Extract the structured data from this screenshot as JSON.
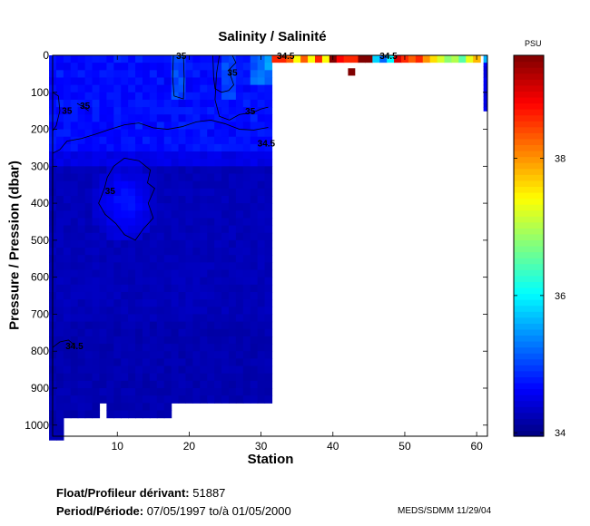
{
  "chart_data": {
    "type": "heatmap",
    "title": "Salinity / Salinité",
    "xlabel": "Station",
    "ylabel": "Pressure / Pression (dbar)",
    "xlim": [
      1,
      61.5
    ],
    "ylim": [
      1030,
      0
    ],
    "x_ticks": [
      10,
      20,
      30,
      40,
      50,
      60
    ],
    "y_ticks": [
      0,
      100,
      200,
      300,
      400,
      500,
      600,
      700,
      800,
      900,
      1000
    ],
    "colorbar": {
      "label": "PSU",
      "range": [
        33.95,
        39.5
      ],
      "ticks": [
        34,
        36,
        38
      ],
      "colormap": "jet"
    },
    "contour_labels": [
      {
        "text": "35",
        "x": 18.2,
        "y": 0
      },
      {
        "text": "35",
        "x": 25.3,
        "y": 45
      },
      {
        "text": "35",
        "x": 2.3,
        "y": 148
      },
      {
        "text": "35",
        "x": 4.8,
        "y": 135
      },
      {
        "text": "35",
        "x": 27.8,
        "y": 150
      },
      {
        "text": "34.5",
        "x": 29.5,
        "y": 237
      },
      {
        "text": "35",
        "x": 8.3,
        "y": 365
      },
      {
        "text": "34.5",
        "x": 2.8,
        "y": 785
      },
      {
        "text": "34.5",
        "x": 32.2,
        "y": 0
      },
      {
        "text": "34.5",
        "x": 46.5,
        "y": 0
      }
    ],
    "regions": {
      "deep_profiles": "stations 1-31, salinity ~34.1-34.9 PSU, 0-980 dbar",
      "high_salinity_core": "stations 7-15, 280-500 dbar, >35 PSU",
      "surface_stations": "stations 31-61, 0-20 dbar only, ~36-39.5 PSU",
      "station_61": "0-150 dbar, ~34.3-35.6 PSU"
    }
  },
  "footer": {
    "float_label": "Float/Profileur dérivant:",
    "float_id": "51887",
    "period_label": "Period/Période:",
    "period_text": "07/05/1997  to/à  01/05/2000",
    "credit": "MEDS/SDMM  11/29/04"
  }
}
